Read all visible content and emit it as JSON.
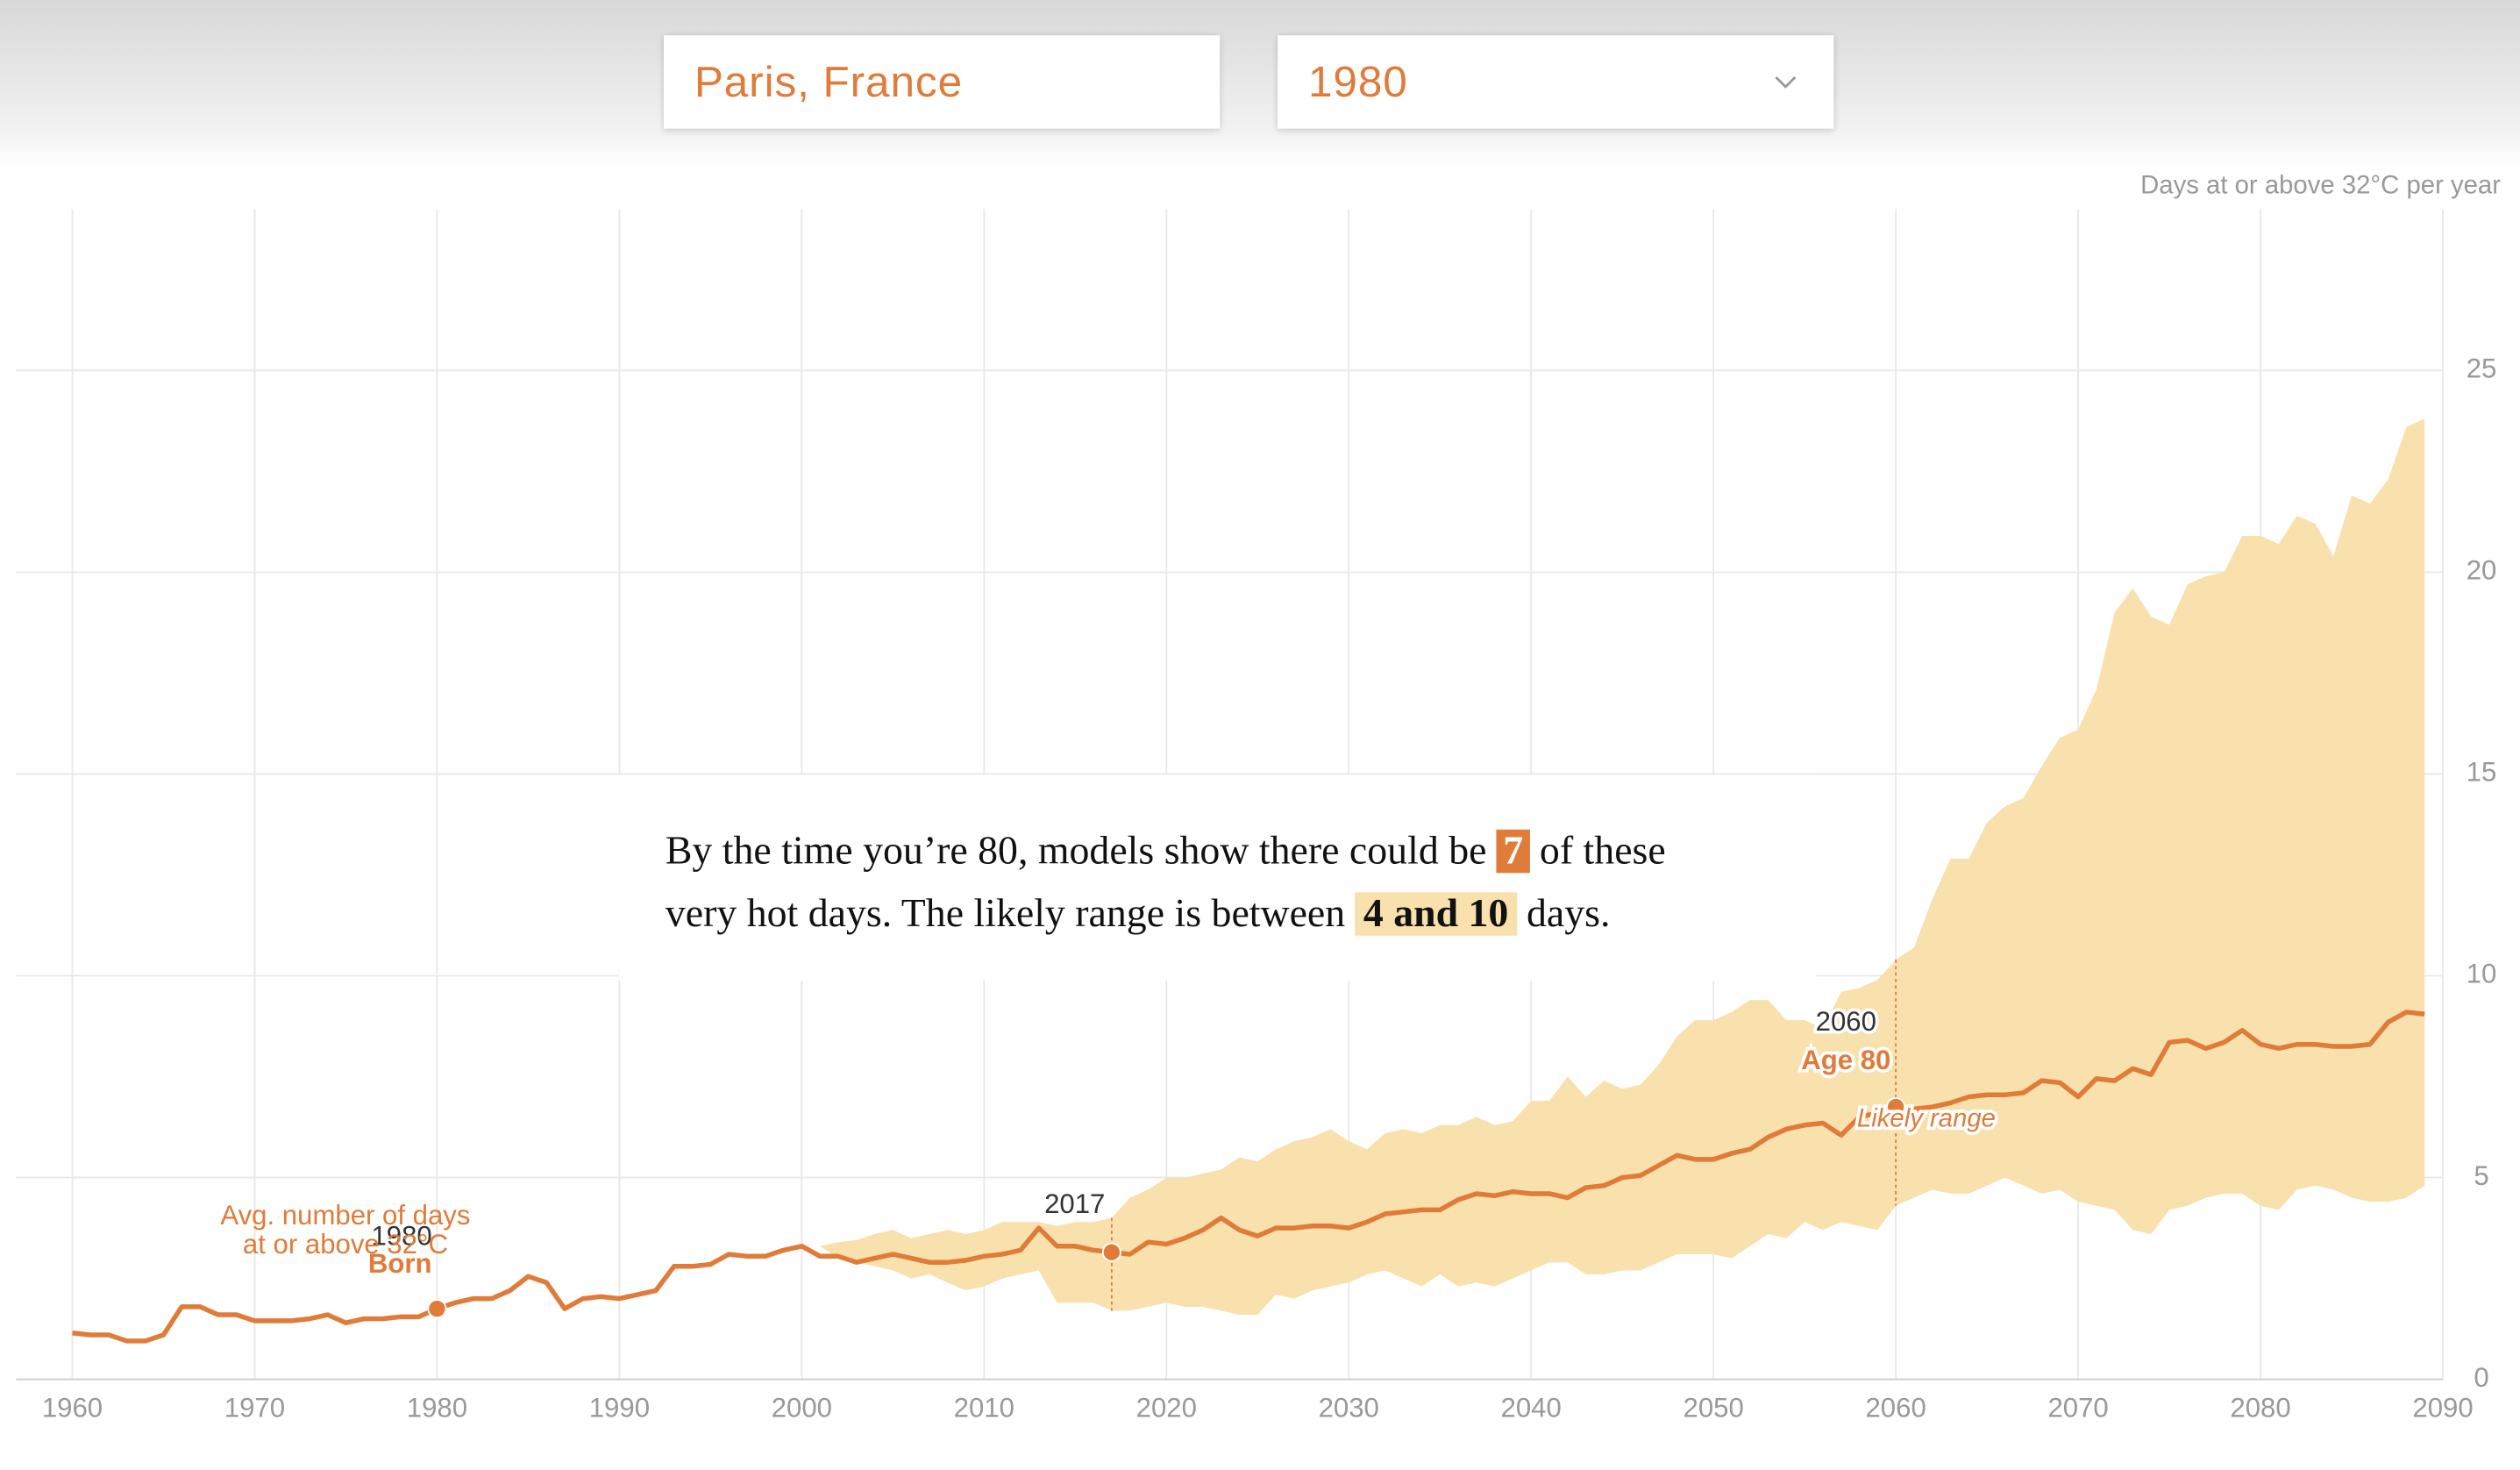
{
  "controls": {
    "location": "Paris, France",
    "year": "1980"
  },
  "narrative": {
    "line1a": "By the time you’re 80, models show there could be",
    "value": "7",
    "line1b": "of these",
    "line2a": "very hot days. The likely range is between",
    "range": "4 and 10",
    "line2b": "days."
  },
  "chart_data": {
    "type": "line",
    "y_label": "Days at or above 32°C per year",
    "x": [
      1960,
      1961,
      1962,
      1963,
      1964,
      1965,
      1966,
      1967,
      1968,
      1969,
      1970,
      1971,
      1972,
      1973,
      1974,
      1975,
      1976,
      1977,
      1978,
      1979,
      1980,
      1981,
      1982,
      1983,
      1984,
      1985,
      1986,
      1987,
      1988,
      1989,
      1990,
      1991,
      1992,
      1993,
      1994,
      1995,
      1996,
      1997,
      1998,
      1999,
      2000,
      2001,
      2002,
      2003,
      2004,
      2005,
      2006,
      2007,
      2008,
      2009,
      2010,
      2011,
      2012,
      2013,
      2014,
      2015,
      2016,
      2017,
      2018,
      2019,
      2020,
      2021,
      2022,
      2023,
      2024,
      2025,
      2026,
      2027,
      2028,
      2029,
      2030,
      2031,
      2032,
      2033,
      2034,
      2035,
      2036,
      2037,
      2038,
      2039,
      2040,
      2041,
      2042,
      2043,
      2044,
      2045,
      2046,
      2047,
      2048,
      2049,
      2050,
      2051,
      2052,
      2053,
      2054,
      2055,
      2056,
      2057,
      2058,
      2059,
      2060,
      2061,
      2062,
      2063,
      2064,
      2065,
      2066,
      2067,
      2068,
      2069,
      2070,
      2071,
      2072,
      2073,
      2074,
      2075,
      2076,
      2077,
      2078,
      2079,
      2080,
      2081,
      2082,
      2083,
      2084,
      2085,
      2086,
      2087,
      2088,
      2089
    ],
    "series": [
      {
        "color": "#e07b39",
        "values": [
          1.15,
          1.1,
          1.1,
          0.95,
          0.95,
          1.1,
          1.8,
          1.8,
          1.6,
          1.6,
          1.45,
          1.45,
          1.45,
          1.5,
          1.6,
          1.4,
          1.5,
          1.5,
          1.55,
          1.55,
          1.75,
          1.9,
          2.0,
          2.0,
          2.2,
          2.55,
          2.4,
          1.75,
          2.0,
          2.05,
          2.0,
          2.1,
          2.2,
          2.8,
          2.8,
          2.85,
          3.1,
          3.05,
          3.05,
          3.2,
          3.3,
          3.05,
          3.05,
          2.9,
          3.0,
          3.1,
          3.0,
          2.9,
          2.9,
          2.95,
          3.05,
          3.1,
          3.2,
          3.75,
          3.3,
          3.3,
          3.2,
          3.15,
          3.1,
          3.4,
          3.35,
          3.5,
          3.7,
          4.0,
          3.7,
          3.55,
          3.75,
          3.75,
          3.8,
          3.8,
          3.75,
          3.9,
          4.1,
          4.15,
          4.2,
          4.2,
          4.45,
          4.6,
          4.55,
          4.65,
          4.6,
          4.6,
          4.5,
          4.75,
          4.8,
          5.0,
          5.05,
          5.3,
          5.55,
          5.45,
          5.45,
          5.6,
          5.7,
          6.0,
          6.2,
          6.3,
          6.35,
          6.05,
          6.5,
          6.6,
          6.75,
          6.7,
          6.75,
          6.85,
          7.0,
          7.05,
          7.05,
          7.1,
          7.4,
          7.35,
          7.0,
          7.45,
          7.4,
          7.7,
          7.55,
          8.35,
          8.4,
          8.2,
          8.35,
          8.65,
          8.3,
          8.2,
          8.3,
          8.3,
          8.25,
          8.25,
          8.3,
          8.85,
          9.1,
          9.05
        ]
      }
    ],
    "band": {
      "color": "#f9e1ad",
      "upper": [
        null,
        null,
        null,
        null,
        null,
        null,
        null,
        null,
        null,
        null,
        null,
        null,
        null,
        null,
        null,
        null,
        null,
        null,
        null,
        null,
        null,
        null,
        null,
        null,
        null,
        null,
        null,
        null,
        null,
        null,
        null,
        null,
        null,
        null,
        null,
        null,
        null,
        null,
        null,
        null,
        null,
        3.3,
        3.4,
        3.45,
        3.6,
        3.7,
        3.5,
        3.6,
        3.7,
        3.6,
        3.7,
        3.9,
        3.9,
        3.9,
        3.8,
        3.9,
        3.9,
        4.0,
        4.5,
        4.7,
        5.0,
        5.0,
        5.1,
        5.2,
        5.5,
        5.4,
        5.7,
        5.9,
        6.0,
        6.2,
        5.9,
        5.7,
        6.1,
        6.2,
        6.1,
        6.3,
        6.3,
        6.5,
        6.3,
        6.4,
        6.9,
        6.9,
        7.5,
        7.0,
        7.4,
        7.2,
        7.3,
        7.8,
        8.5,
        8.9,
        8.9,
        9.1,
        9.4,
        9.4,
        8.9,
        8.9,
        8.7,
        9.6,
        9.7,
        9.9,
        10.4,
        10.7,
        11.9,
        12.9,
        12.9,
        13.8,
        14.2,
        14.4,
        15.2,
        15.9,
        16.1,
        17.1,
        19.0,
        19.6,
        18.9,
        18.7,
        19.7,
        19.9,
        20.0,
        20.9,
        20.9,
        20.7,
        21.4,
        21.2,
        20.4,
        21.9,
        21.7,
        22.3,
        23.6,
        23.8
      ],
      "lower": [
        null,
        null,
        null,
        null,
        null,
        null,
        null,
        null,
        null,
        null,
        null,
        null,
        null,
        null,
        null,
        null,
        null,
        null,
        null,
        null,
        null,
        null,
        null,
        null,
        null,
        null,
        null,
        null,
        null,
        null,
        null,
        null,
        null,
        null,
        null,
        null,
        null,
        null,
        null,
        null,
        null,
        3.3,
        3.0,
        2.9,
        2.8,
        2.7,
        2.5,
        2.6,
        2.4,
        2.2,
        2.3,
        2.5,
        2.6,
        2.7,
        1.9,
        1.9,
        1.9,
        1.7,
        1.7,
        1.8,
        1.9,
        1.8,
        1.8,
        1.7,
        1.6,
        1.6,
        2.1,
        2.0,
        2.2,
        2.3,
        2.4,
        2.6,
        2.7,
        2.5,
        2.3,
        2.6,
        2.3,
        2.4,
        2.3,
        2.5,
        2.7,
        2.9,
        2.9,
        2.6,
        2.6,
        2.7,
        2.7,
        2.9,
        3.1,
        3.1,
        3.1,
        3.0,
        3.3,
        3.6,
        3.5,
        3.9,
        3.7,
        3.9,
        3.8,
        3.7,
        4.3,
        4.5,
        4.7,
        4.6,
        4.6,
        4.8,
        5.0,
        4.8,
        4.6,
        4.7,
        4.4,
        4.3,
        4.2,
        3.7,
        3.6,
        4.2,
        4.3,
        4.5,
        4.6,
        4.6,
        4.3,
        4.2,
        4.7,
        4.8,
        4.7,
        4.5,
        4.4,
        4.4,
        4.5,
        4.8
      ]
    },
    "annotations": [
      "Avg. number of days",
      "at or above 32°C",
      "1980",
      "Born",
      "2017",
      "2060",
      "Age 80",
      "Likely range"
    ],
    "xlim": [
      1960,
      2090
    ],
    "xticks": [
      1960,
      1970,
      1980,
      1990,
      2000,
      2010,
      2020,
      2030,
      2040,
      2050,
      2060,
      2070,
      2080,
      2090
    ],
    "ylim": [
      0,
      29
    ],
    "yticks": [
      0,
      5,
      10,
      15,
      20,
      25
    ],
    "grid": true
  }
}
